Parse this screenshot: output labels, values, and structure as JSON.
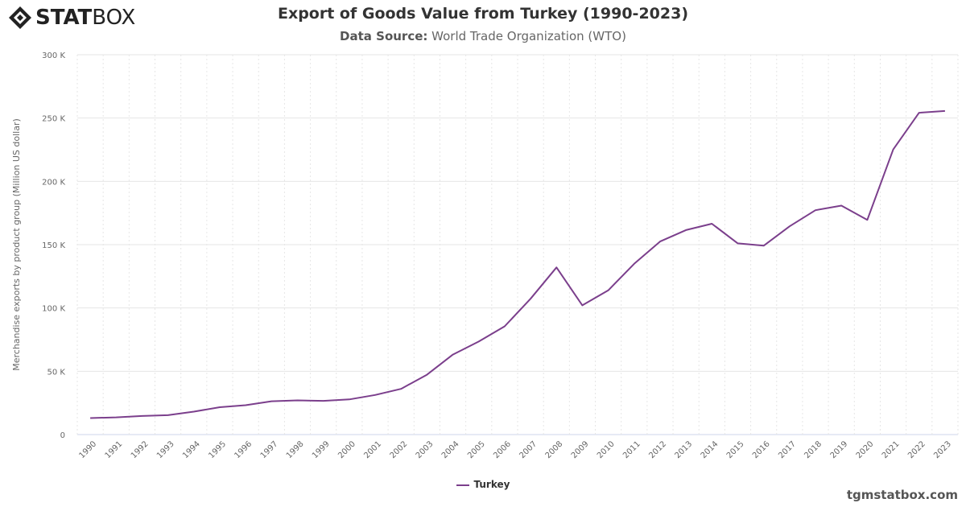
{
  "header": {
    "logo_bold": "STAT",
    "logo_light": "BOX",
    "title": "Export of Goods Value from Turkey (1990-2023)",
    "subtitle_label": "Data Source:",
    "subtitle_value": "World Trade Organization (WTO)"
  },
  "footer": {
    "credit": "tgmstatbox.com"
  },
  "colors": {
    "series": "#7b3f8c",
    "grid": "#e6e6e6"
  },
  "chart_data": {
    "type": "line",
    "title": "Export of Goods Value from Turkey (1990-2023)",
    "subtitle": "Data Source: World Trade Organization (WTO)",
    "ylabel": "Merchandise exports by product group (Million US dollar)",
    "xlabel": "",
    "ylim": [
      0,
      300000
    ],
    "yticks": [
      0,
      50000,
      100000,
      150000,
      200000,
      250000,
      300000
    ],
    "ytick_labels": [
      "0",
      "50 K",
      "100 K",
      "150 K",
      "200 K",
      "250 K",
      "300 K"
    ],
    "grid": true,
    "legend_position": "bottom-center",
    "x": [
      "1990",
      "1991",
      "1992",
      "1993",
      "1994",
      "1995",
      "1996",
      "1997",
      "1998",
      "1999",
      "2000",
      "2001",
      "2002",
      "2003",
      "2004",
      "2005",
      "2006",
      "2007",
      "2008",
      "2009",
      "2010",
      "2011",
      "2012",
      "2013",
      "2014",
      "2015",
      "2016",
      "2017",
      "2018",
      "2019",
      "2020",
      "2021",
      "2022",
      "2023"
    ],
    "series": [
      {
        "name": "Turkey",
        "values": [
          13000,
          13600,
          14700,
          15300,
          18100,
          21600,
          23200,
          26300,
          27000,
          26600,
          27800,
          31300,
          36100,
          47300,
          63200,
          73500,
          85500,
          107300,
          132000,
          102100,
          113900,
          134900,
          152500,
          161500,
          166500,
          151000,
          149200,
          164500,
          177200,
          180800,
          169600,
          225200,
          254200,
          255600
        ]
      }
    ]
  }
}
